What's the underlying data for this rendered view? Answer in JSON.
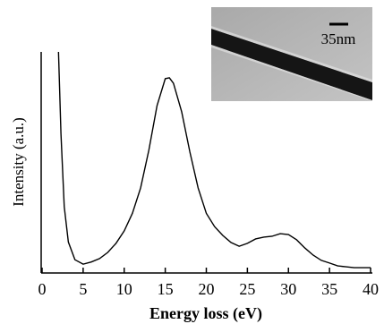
{
  "chart_data": {
    "type": "line",
    "xlabel": "Energy loss (eV)",
    "ylabel": "Intensity (a.u.)",
    "inset_label": "35nm",
    "x": [
      2.0,
      2.3,
      2.7,
      3.2,
      4,
      5,
      6,
      7,
      8,
      9,
      10,
      11,
      12,
      13,
      14,
      15,
      15.5,
      16,
      17,
      18,
      19,
      20,
      21,
      22,
      23,
      24,
      25,
      26,
      27,
      28,
      29,
      30,
      31,
      32,
      33,
      34,
      35,
      36,
      37,
      38,
      40
    ],
    "series": [
      {
        "color": "#000000",
        "values": [
          100,
          63,
          30,
          14,
          6,
          4,
          5,
          6.5,
          9.3,
          13.4,
          19,
          27,
          38.5,
          55.5,
          75.7,
          87.9,
          88.3,
          85.8,
          72.9,
          54.7,
          38.5,
          27,
          21,
          17,
          13.8,
          12.1,
          13.4,
          15.4,
          16.2,
          16.6,
          17.8,
          17.4,
          15,
          11.3,
          8.1,
          5.7,
          4.5,
          3.2,
          2.8,
          2.4,
          2.4
        ]
      }
    ],
    "xlim": [
      0,
      40
    ],
    "xticks": [
      0,
      5,
      10,
      15,
      20,
      25,
      30,
      35,
      40
    ],
    "ylim": [
      0,
      100
    ]
  }
}
